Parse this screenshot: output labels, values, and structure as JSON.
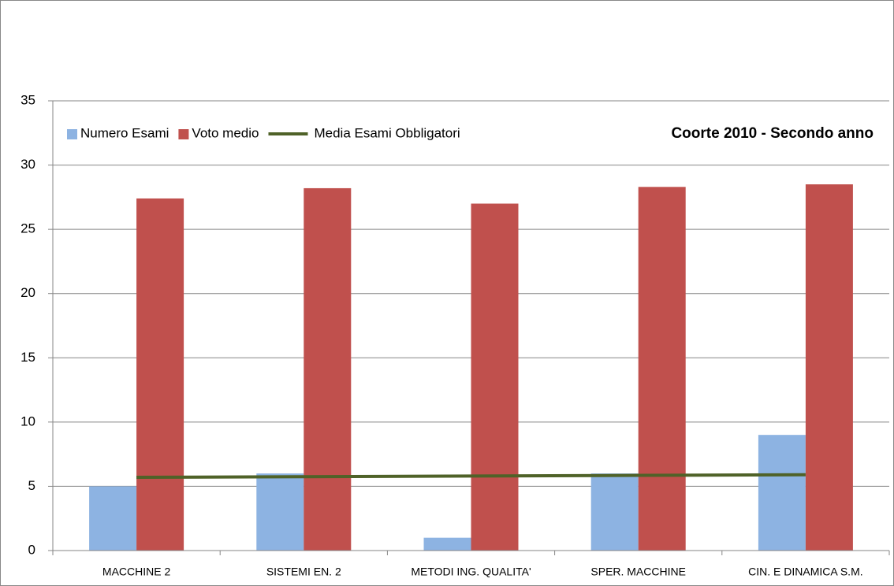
{
  "chart_data": {
    "type": "bar",
    "title": "Coorte 2010 - Secondo anno",
    "categories": [
      "MACCHINE 2",
      "SISTEMI EN. 2",
      "METODI ING. QUALITA'",
      "SPER. MACCHINE",
      "CIN. E DINAMICA S.M."
    ],
    "series": [
      {
        "name": "Numero Esami",
        "color": "#8db3e2",
        "values": [
          5,
          6,
          1,
          6,
          9
        ]
      },
      {
        "name": "Voto medio",
        "color": "#c0504d",
        "values": [
          27.4,
          28.2,
          27.0,
          28.3,
          28.5
        ]
      },
      {
        "name": "Media Esami Obbligatori",
        "color": "#4f6228",
        "type": "line",
        "values": [
          5.7,
          5.75,
          5.8,
          5.85,
          5.9
        ]
      }
    ],
    "ylim": [
      0,
      35
    ],
    "yticks": [
      0,
      5,
      10,
      15,
      20,
      25,
      30,
      35
    ],
    "grid": true,
    "legend": "top-left"
  }
}
